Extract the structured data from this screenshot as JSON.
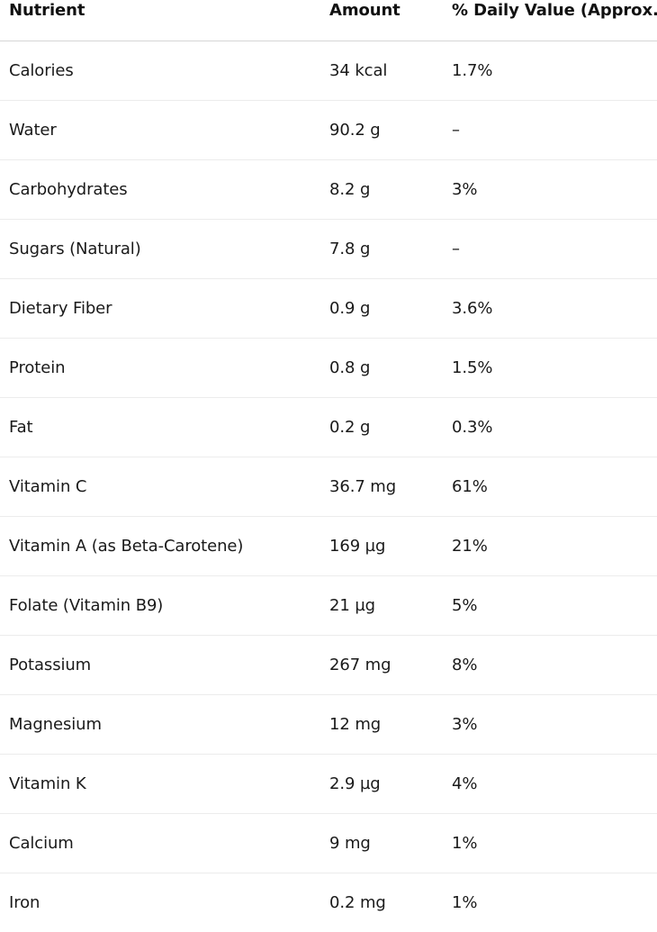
{
  "table": {
    "headers": {
      "nutrient": "Nutrient",
      "amount": "Amount",
      "daily_value": "% Daily Value (Approx.)"
    },
    "rows": [
      {
        "nutrient": "Calories",
        "amount": "34 kcal",
        "daily_value": "1.7%"
      },
      {
        "nutrient": "Water",
        "amount": "90.2 g",
        "daily_value": "–"
      },
      {
        "nutrient": "Carbohydrates",
        "amount": "8.2 g",
        "daily_value": "3%"
      },
      {
        "nutrient": "Sugars (Natural)",
        "amount": "7.8 g",
        "daily_value": "–"
      },
      {
        "nutrient": "Dietary Fiber",
        "amount": "0.9 g",
        "daily_value": "3.6%"
      },
      {
        "nutrient": "Protein",
        "amount": "0.8 g",
        "daily_value": "1.5%"
      },
      {
        "nutrient": "Fat",
        "amount": "0.2 g",
        "daily_value": "0.3%"
      },
      {
        "nutrient": "Vitamin C",
        "amount": "36.7 mg",
        "daily_value": "61%"
      },
      {
        "nutrient": "Vitamin A (as Beta-Carotene)",
        "amount": "169 µg",
        "daily_value": "21%"
      },
      {
        "nutrient": "Folate (Vitamin B9)",
        "amount": "21 µg",
        "daily_value": "5%"
      },
      {
        "nutrient": "Potassium",
        "amount": "267 mg",
        "daily_value": "8%"
      },
      {
        "nutrient": "Magnesium",
        "amount": "12 mg",
        "daily_value": "3%"
      },
      {
        "nutrient": "Vitamin K",
        "amount": "2.9 µg",
        "daily_value": "4%"
      },
      {
        "nutrient": "Calcium",
        "amount": "9 mg",
        "daily_value": "1%"
      },
      {
        "nutrient": "Iron",
        "amount": "0.2 mg",
        "daily_value": "1%"
      }
    ]
  }
}
